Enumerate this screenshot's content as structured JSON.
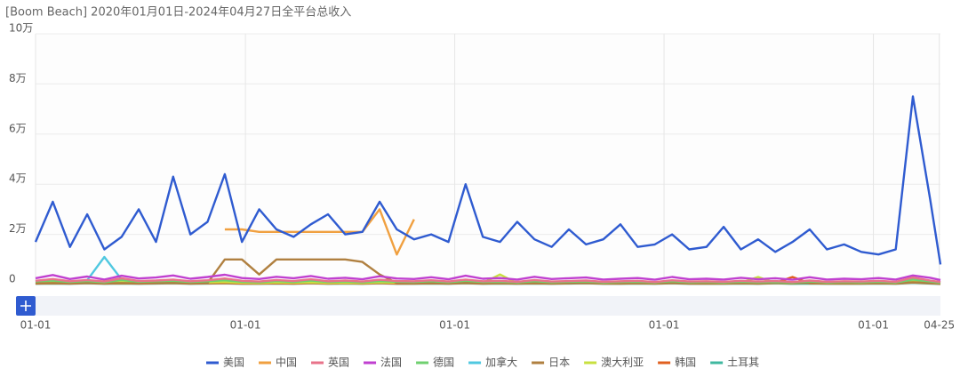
{
  "chart_data": {
    "type": "line",
    "title": "[Boom Beach]  2020年01月01日-2024年04月27日全平台总收入",
    "x": [
      0,
      30,
      60,
      90,
      120,
      150,
      180,
      210,
      240,
      270,
      300,
      330,
      360,
      390,
      420,
      450,
      480,
      510,
      540,
      570,
      600,
      630,
      660,
      690,
      720,
      750,
      780,
      810,
      840,
      870,
      900,
      930,
      960,
      990,
      1020,
      1050,
      1080,
      1110,
      1140,
      1170,
      1200,
      1230,
      1260,
      1290,
      1320,
      1350,
      1380,
      1410,
      1440,
      1470,
      1500,
      1530,
      1560,
      1578
    ],
    "xlim": [
      0,
      1578
    ],
    "xticks": [
      {
        "value": 0,
        "label": "01-01"
      },
      {
        "value": 366,
        "label": "01-01"
      },
      {
        "value": 731,
        "label": "01-01"
      },
      {
        "value": 1096,
        "label": "01-01"
      },
      {
        "value": 1461,
        "label": "01-01"
      },
      {
        "value": 1576,
        "label": "04-25"
      }
    ],
    "ylim": [
      0,
      100000
    ],
    "yticks": [
      0,
      {
        "value": 20000,
        "label": "2万"
      },
      {
        "value": 40000,
        "label": "4万"
      },
      {
        "value": 60000,
        "label": "6万"
      },
      {
        "value": 80000,
        "label": "8万"
      },
      {
        "value": 100000,
        "label": "10万"
      }
    ],
    "grid": true,
    "series": [
      {
        "name": "美国",
        "color": "#2f5bd0",
        "values": [
          17000,
          33000,
          15000,
          28000,
          14000,
          19000,
          30000,
          17000,
          43000,
          20000,
          25000,
          44000,
          17000,
          30000,
          22000,
          19000,
          24000,
          28000,
          20000,
          21000,
          33000,
          22000,
          18000,
          20000,
          17000,
          40000,
          19000,
          17000,
          25000,
          18000,
          15000,
          22000,
          16000,
          18000,
          24000,
          15000,
          16000,
          20000,
          14000,
          15000,
          23000,
          14000,
          18000,
          13000,
          17000,
          22000,
          14000,
          16000,
          13000,
          12000,
          14000,
          75000,
          34000,
          8000
        ]
      },
      {
        "name": "中国",
        "color": "#f0a040",
        "values": [
          null,
          null,
          null,
          null,
          null,
          null,
          null,
          null,
          null,
          null,
          null,
          22000,
          22000,
          21000,
          21000,
          21000,
          21000,
          21000,
          21000,
          21000,
          30000,
          12000,
          26000,
          null,
          null,
          null,
          null,
          null,
          null,
          null,
          null,
          null,
          null,
          null,
          null,
          null,
          null,
          null,
          null,
          null,
          null,
          null,
          null,
          null,
          null,
          null,
          null,
          null,
          null,
          null,
          null,
          null,
          null,
          null
        ]
      },
      {
        "name": "英国",
        "color": "#e8738a",
        "values": [
          1500,
          2200,
          1300,
          1800,
          1200,
          2500,
          1400,
          1600,
          2000,
          1300,
          1700,
          2400,
          1500,
          1200,
          1800,
          1400,
          2100,
          1300,
          1600,
          1200,
          1900,
          1400,
          1300,
          1700,
          1200,
          2000,
          1300,
          1500,
          1100,
          1800,
          1200,
          1400,
          1600,
          1100,
          1300,
          1500,
          1000,
          1700,
          1200,
          1300,
          1100,
          1500,
          1200,
          1400,
          1000,
          1600,
          1100,
          1300,
          1200,
          1500,
          1100,
          2800,
          1600,
          1000
        ]
      },
      {
        "name": "法国",
        "color": "#c040d0",
        "values": [
          2500,
          3800,
          2200,
          3200,
          2000,
          3500,
          2400,
          2800,
          3600,
          2300,
          3000,
          3900,
          2600,
          2200,
          3100,
          2500,
          3400,
          2300,
          2700,
          2100,
          3300,
          2400,
          2200,
          2900,
          2100,
          3500,
          2300,
          2600,
          2000,
          3100,
          2200,
          2500,
          2800,
          2000,
          2300,
          2600,
          1900,
          3000,
          2100,
          2300,
          2000,
          2700,
          2100,
          2500,
          1900,
          2900,
          2000,
          2300,
          2100,
          2600,
          2000,
          3600,
          2700,
          1800
        ]
      },
      {
        "name": "德国",
        "color": "#70d070",
        "values": [
          1200,
          1600,
          1000,
          1400,
          900,
          1800,
          1100,
          1300,
          1500,
          1000,
          1300,
          1700,
          1100,
          900,
          1400,
          1000,
          1600,
          1000,
          1200,
          900,
          1400,
          1100,
          1000,
          1300,
          900,
          1500,
          1000,
          1100,
          800,
          1300,
          900,
          1100,
          1200,
          800,
          1000,
          1100,
          800,
          1300,
          900,
          1000,
          800,
          1100,
          900,
          1000,
          800,
          1200,
          800,
          1000,
          900,
          1100,
          800,
          2000,
          1200,
          700
        ]
      },
      {
        "name": "加拿大",
        "color": "#50c8e0",
        "values": [
          1400,
          1900,
          1200,
          1700,
          11000,
          2000,
          1300,
          1500,
          1800,
          1200,
          1500,
          2000,
          1300,
          1100,
          1600,
          1200,
          1800,
          1200,
          1400,
          1100,
          1600,
          1200,
          1100,
          1500,
          1000,
          1700,
          1100,
          1300,
          900,
          1500,
          1000,
          1200,
          1400,
          900,
          1100,
          1300,
          900,
          1500,
          1000,
          1100,
          900,
          1300,
          1000,
          1200,
          900,
          1400,
          900,
          1100,
          1000,
          1300,
          900,
          2200,
          1400,
          800
        ]
      },
      {
        "name": "日本",
        "color": "#b08040",
        "values": [
          500,
          600,
          500,
          700,
          500,
          600,
          500,
          600,
          700,
          500,
          600,
          10000,
          10000,
          4000,
          10000,
          10000,
          10000,
          10000,
          10000,
          9000,
          4000,
          600,
          500,
          600,
          500,
          700,
          500,
          600,
          500,
          600,
          500,
          600,
          700,
          500,
          500,
          600,
          500,
          700,
          500,
          500,
          500,
          600,
          500,
          600,
          500,
          700,
          500,
          500,
          500,
          600,
          500,
          900,
          600,
          400
        ]
      },
      {
        "name": "澳大利亚",
        "color": "#c8e040",
        "values": [
          700,
          900,
          600,
          800,
          600,
          1000,
          700,
          800,
          900,
          600,
          800,
          1000,
          700,
          600,
          800,
          700,
          900,
          600,
          700,
          600,
          900,
          700,
          600,
          800,
          600,
          900,
          600,
          4000,
          500,
          800,
          600,
          700,
          800,
          500,
          600,
          700,
          500,
          800,
          600,
          600,
          500,
          700,
          3000,
          600,
          500,
          800,
          500,
          600,
          500,
          700,
          500,
          1200,
          700,
          400
        ]
      },
      {
        "name": "韩国",
        "color": "#e06020",
        "values": [
          400,
          500,
          400,
          600,
          400,
          500,
          400,
          500,
          600,
          400,
          500,
          600,
          400,
          400,
          500,
          400,
          600,
          400,
          500,
          400,
          600,
          400,
          400,
          500,
          400,
          600,
          400,
          500,
          400,
          500,
          400,
          500,
          600,
          400,
          400,
          500,
          400,
          600,
          400,
          400,
          400,
          500,
          400,
          600,
          3000,
          500,
          400,
          400,
          400,
          500,
          400,
          800,
          500,
          300
        ]
      },
      {
        "name": "土耳其",
        "color": "#40b8a0",
        "values": [
          300,
          400,
          300,
          500,
          300,
          400,
          300,
          400,
          500,
          300,
          400,
          500,
          300,
          300,
          400,
          300,
          500,
          300,
          400,
          300,
          500,
          300,
          300,
          400,
          300,
          500,
          300,
          400,
          300,
          400,
          300,
          400,
          500,
          300,
          300,
          400,
          300,
          500,
          300,
          300,
          300,
          400,
          300,
          500,
          300,
          400,
          300,
          300,
          300,
          400,
          300,
          700,
          400,
          200
        ]
      }
    ]
  }
}
